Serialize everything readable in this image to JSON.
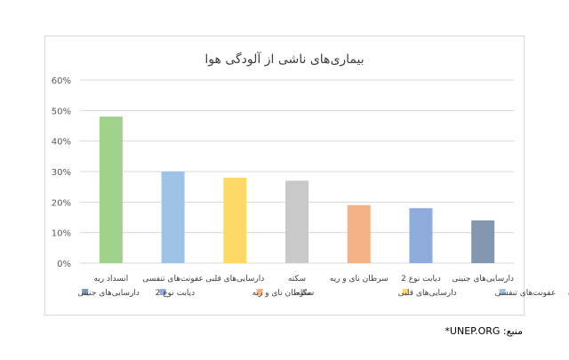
{
  "chart_data": {
    "type": "bar",
    "title": "بیماری‌های ناشی از آلودگی هوا",
    "categories": [
      "انسداد ریه",
      "عفونت‌های تنفسی",
      "دارسایی‌های قلبی",
      "سکته",
      "سرطان نای و ریه",
      "دیابت نوع 2",
      "دارسایی‌های جنینی"
    ],
    "values": [
      48,
      30,
      28,
      27,
      19,
      18,
      14
    ],
    "colors": [
      "#9fd18b",
      "#9dc3e6",
      "#ffd966",
      "#c9c9c9",
      "#f4b183",
      "#8faadc",
      "#8497b0"
    ],
    "ylim": [
      0,
      60
    ],
    "yticks": [
      0,
      10,
      20,
      30,
      40,
      50,
      60
    ],
    "ytick_labels": [
      "0%",
      "10%",
      "20%",
      "30%",
      "40%",
      "50%",
      "60%"
    ],
    "grid": true,
    "legend_position": "bottom",
    "xlabel": "",
    "ylabel": ""
  },
  "source": "منبع: UNEP.ORG*"
}
